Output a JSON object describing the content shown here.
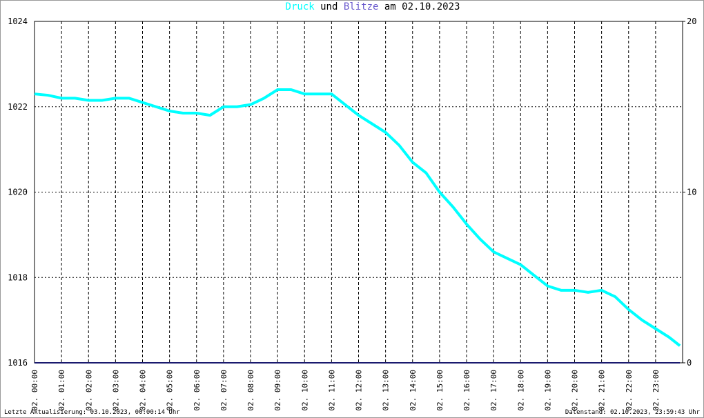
{
  "chart_data": {
    "type": "line",
    "title_parts": [
      "und",
      "am 02.10.2023"
    ],
    "x": [
      0,
      0.5,
      1,
      1.5,
      2,
      2.5,
      3,
      3.5,
      4,
      4.5,
      5,
      5.5,
      6,
      6.5,
      7,
      7.5,
      8,
      8.5,
      9,
      9.5,
      10,
      10.5,
      11,
      11.5,
      12,
      12.5,
      13,
      13.5,
      14,
      14.5,
      15,
      15.5,
      16,
      16.5,
      17,
      17.5,
      18,
      18.5,
      19,
      19.5,
      20,
      20.5,
      21,
      21.5,
      22,
      22.5,
      23,
      23.5,
      23.9
    ],
    "series": [
      {
        "name": "Druck",
        "color": "#00ffff",
        "values": [
          1022.3,
          1022.27,
          1022.2,
          1022.2,
          1022.15,
          1022.15,
          1022.2,
          1022.2,
          1022.1,
          1022.0,
          1021.9,
          1021.85,
          1021.85,
          1021.8,
          1022.0,
          1022.0,
          1022.05,
          1022.2,
          1022.4,
          1022.4,
          1022.3,
          1022.3,
          1022.3,
          1022.05,
          1021.8,
          1021.6,
          1021.4,
          1021.1,
          1020.7,
          1020.45,
          1020.0,
          1019.65,
          1019.25,
          1018.9,
          1018.6,
          1018.45,
          1018.3,
          1018.05,
          1017.8,
          1017.7,
          1017.7,
          1017.65,
          1017.7,
          1017.55,
          1017.25,
          1017.0,
          1016.8,
          1016.6,
          1016.4
        ]
      },
      {
        "name": "Blitze",
        "color": "#1a1a6e",
        "axis": "y2",
        "values": [
          0,
          0,
          0,
          0,
          0,
          0,
          0,
          0,
          0,
          0,
          0,
          0,
          0,
          0,
          0,
          0,
          0,
          0,
          0,
          0,
          0,
          0,
          0,
          0,
          0,
          0,
          0,
          0,
          0,
          0,
          0,
          0,
          0,
          0,
          0,
          0,
          0,
          0,
          0,
          0,
          0,
          0,
          0,
          0,
          0,
          0,
          0,
          0,
          0
        ]
      }
    ],
    "title_colors": [
      "#00ffff",
      "#6a5acd"
    ],
    "xlim": [
      0,
      24
    ],
    "xticks": [
      {
        "value": 0,
        "label": "02. 00:00"
      },
      {
        "value": 1,
        "label": "02. 01:00"
      },
      {
        "value": 2,
        "label": "02. 02:00"
      },
      {
        "value": 3,
        "label": "02. 03:00"
      },
      {
        "value": 4,
        "label": "02. 04:00"
      },
      {
        "value": 5,
        "label": "02. 05:00"
      },
      {
        "value": 6,
        "label": "02. 06:00"
      },
      {
        "value": 7,
        "label": "02. 07:00"
      },
      {
        "value": 8,
        "label": "02. 08:00"
      },
      {
        "value": 9,
        "label": "02. 09:00"
      },
      {
        "value": 10,
        "label": "02. 10:00"
      },
      {
        "value": 11,
        "label": "02. 11:00"
      },
      {
        "value": 12,
        "label": "02. 12:00"
      },
      {
        "value": 13,
        "label": "02. 13:00"
      },
      {
        "value": 14,
        "label": "02. 14:00"
      },
      {
        "value": 15,
        "label": "02. 15:00"
      },
      {
        "value": 16,
        "label": "02. 16:00"
      },
      {
        "value": 17,
        "label": "02. 17:00"
      },
      {
        "value": 18,
        "label": "02. 18:00"
      },
      {
        "value": 19,
        "label": "02. 19:00"
      },
      {
        "value": 20,
        "label": "02. 20:00"
      },
      {
        "value": 21,
        "label": "02. 21:00"
      },
      {
        "value": 22,
        "label": "02. 22:00"
      },
      {
        "value": 23,
        "label": "02. 23:00"
      }
    ],
    "ylim": [
      1016,
      1024
    ],
    "yticks": [
      1016,
      1018,
      1020,
      1022,
      1024
    ],
    "y2lim": [
      0,
      20
    ],
    "y2ticks": [
      0,
      10,
      20
    ],
    "grid": true,
    "footer_left": "Letzte Aktualisierung: 03.10.2023, 00:00:14 Uhr",
    "footer_right": "Datenstand: 02.10.2023, 23:59:43 Uhr"
  }
}
